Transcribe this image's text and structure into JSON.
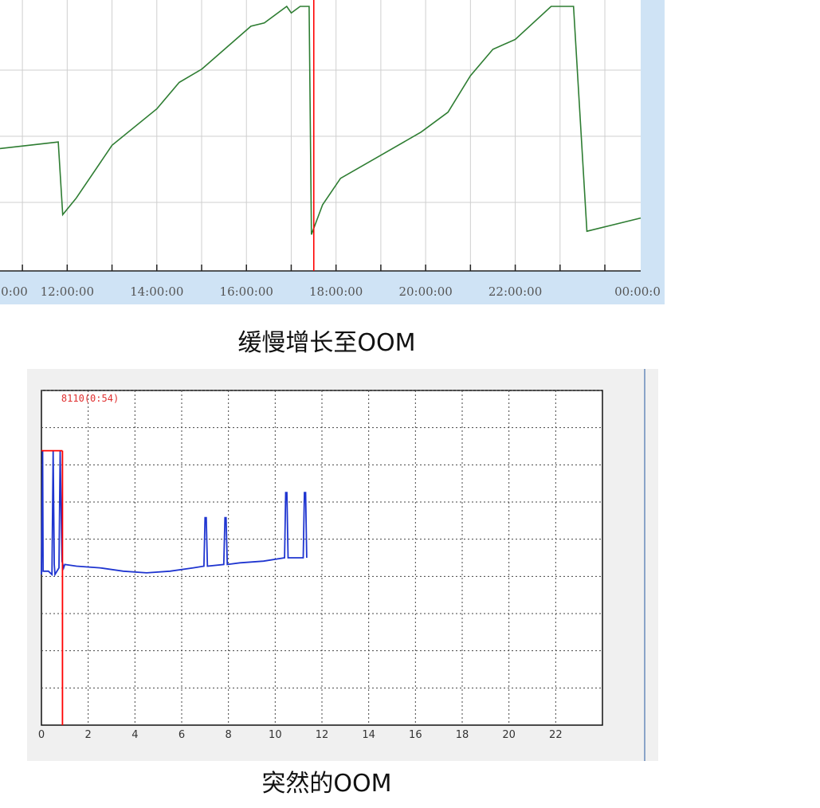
{
  "chart_data": [
    {
      "type": "line",
      "title": "",
      "xlabel": "",
      "ylabel": "",
      "x_tick_labels": [
        "0:00",
        "12:00:00",
        "14:00:00",
        "16:00:00",
        "18:00:00",
        "20:00:00",
        "22:00:00",
        "00:00:0"
      ],
      "xlim_hours": [
        10.5,
        24.8
      ],
      "ylim": [
        0,
        4
      ],
      "grid": true,
      "series": [
        {
          "color": "#2e7d32",
          "x": [
            10.5,
            11.8,
            11.9,
            12.2,
            13.0,
            14.0,
            14.5,
            15.0,
            16.1,
            16.4,
            16.9,
            17.0,
            17.2,
            17.4,
            17.45,
            17.7,
            18.1,
            19.0,
            19.9,
            20.5,
            21.0,
            21.5,
            22.0,
            22.8,
            23.3,
            23.6,
            24.8
          ],
          "y": [
            1.85,
            1.95,
            0.85,
            1.1,
            1.9,
            2.45,
            2.85,
            3.05,
            3.7,
            3.75,
            4.0,
            3.9,
            4.0,
            4.0,
            0.55,
            1.0,
            1.4,
            1.75,
            2.1,
            2.4,
            2.95,
            3.35,
            3.5,
            4.0,
            4.0,
            0.6,
            0.8
          ]
        }
      ],
      "markers": [
        {
          "x": 17.45,
          "color": "#ff0000"
        }
      ]
    },
    {
      "type": "line",
      "title": "",
      "xlabel": "",
      "ylabel": "",
      "x_ticks": [
        0,
        2,
        4,
        6,
        8,
        10,
        12,
        14,
        16,
        18,
        20,
        22
      ],
      "xlim": [
        0,
        24
      ],
      "ylim": [
        0,
        10
      ],
      "grid": true,
      "annotation": "8110(0:54)",
      "series": [
        {
          "color": "#1f35d0",
          "x": [
            0.0,
            0.05,
            0.07,
            0.3,
            0.45,
            0.5,
            0.55,
            0.58,
            0.75,
            0.8,
            0.88,
            0.95,
            1.0,
            1.5,
            2.5,
            3.5,
            4.5,
            5.5,
            6.5,
            6.95,
            7.0,
            7.05,
            7.1,
            7.8,
            7.85,
            7.9,
            7.95,
            8.5,
            9.5,
            10.4,
            10.45,
            10.5,
            10.55,
            11.2,
            11.25,
            11.3,
            11.35
          ],
          "y": [
            4.5,
            8.2,
            4.6,
            4.6,
            4.5,
            8.2,
            4.8,
            4.5,
            4.7,
            8.2,
            4.9,
            4.7,
            4.8,
            4.75,
            4.7,
            4.6,
            4.55,
            4.6,
            4.7,
            4.75,
            6.2,
            6.2,
            4.75,
            4.8,
            6.2,
            6.2,
            4.8,
            4.85,
            4.9,
            5.0,
            6.95,
            6.95,
            5.0,
            5.0,
            6.95,
            6.95,
            5.0
          ]
        }
      ],
      "markers": [
        {
          "x": 0.9,
          "color": "#ff0000"
        }
      ],
      "marker_box": {
        "x0": 0,
        "x1": 0.9,
        "y": 8.2,
        "color": "#ff0000"
      }
    }
  ],
  "captions": {
    "top": "缓慢增长至OOM",
    "bottom": "突然的OOM"
  }
}
